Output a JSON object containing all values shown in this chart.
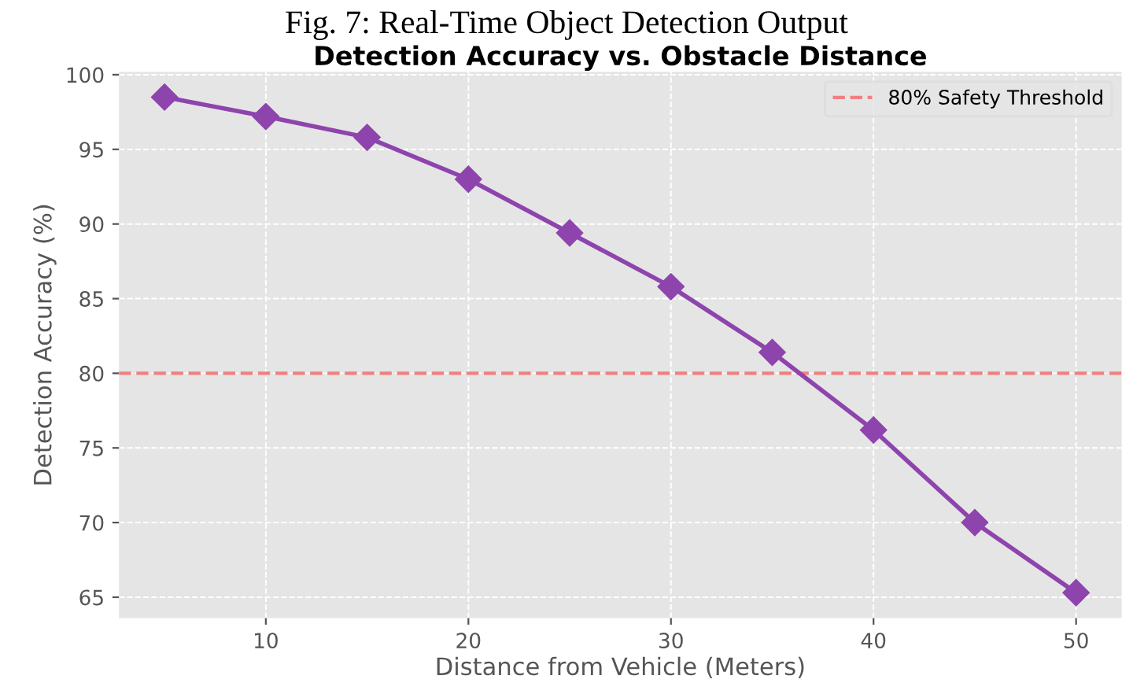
{
  "chart_data": {
    "type": "line",
    "title": "Detection Accuracy vs. Obstacle Distance",
    "annotations": [
      "Fig. 7: Real-Time Object Detection Output"
    ],
    "xlabel": "Distance from Vehicle (Meters)",
    "ylabel": "Detection Accuracy (%)",
    "x": [
      5,
      10,
      15,
      20,
      25,
      30,
      35,
      40,
      45,
      50
    ],
    "series": [
      {
        "color": "#8e44ad",
        "values": [
          98.5,
          97.2,
          95.8,
          93.0,
          89.4,
          85.8,
          81.4,
          76.2,
          70.0,
          65.3
        ]
      }
    ],
    "marker": "diamond",
    "line_style": "solid",
    "xlim": [
      2.75,
      52.25
    ],
    "ylim": [
      63.6,
      100.2
    ],
    "xticks": [
      10,
      20,
      30,
      40,
      50
    ],
    "yticks": [
      65,
      70,
      75,
      80,
      85,
      90,
      95,
      100
    ],
    "ref_lines": [
      {
        "axis": "y",
        "value": 80,
        "label": "80% Safety Threshold",
        "color": "#f08080",
        "line_style": "dashed"
      }
    ],
    "grid": true,
    "legend": "top right"
  }
}
